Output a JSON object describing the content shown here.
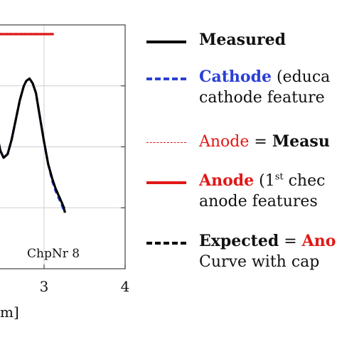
{
  "chart_data": {
    "type": "line",
    "x_ticks": [
      "3",
      "4"
    ],
    "xlabel_fragment": "m]",
    "xlim": [
      2.4,
      4.1
    ],
    "ylim": [
      0,
      1
    ],
    "annotation": "ChpNr 8",
    "series": [
      {
        "name": "Measured",
        "color": "#000000",
        "style": "solid",
        "points": [
          [
            2.39,
            0.65
          ],
          [
            2.42,
            0.55
          ],
          [
            2.46,
            0.485
          ],
          [
            2.5,
            0.455
          ],
          [
            2.55,
            0.47
          ],
          [
            2.6,
            0.53
          ],
          [
            2.65,
            0.61
          ],
          [
            2.7,
            0.69
          ],
          [
            2.75,
            0.75
          ],
          [
            2.78,
            0.77
          ],
          [
            2.82,
            0.78
          ],
          [
            2.86,
            0.76
          ],
          [
            2.9,
            0.72
          ],
          [
            2.93,
            0.66
          ],
          [
            2.96,
            0.6
          ],
          [
            3.0,
            0.52
          ],
          [
            3.05,
            0.43
          ],
          [
            3.1,
            0.37
          ],
          [
            3.14,
            0.33
          ],
          [
            3.18,
            0.3
          ],
          [
            3.22,
            0.27
          ],
          [
            3.26,
            0.23
          ]
        ]
      },
      {
        "name": "Cathode",
        "color": "#2a3fd6",
        "style": "dashed",
        "points": [
          [
            2.39,
            0.65
          ],
          [
            2.42,
            0.55
          ],
          [
            2.46,
            0.485
          ],
          [
            2.5,
            0.455
          ],
          [
            2.55,
            0.47
          ],
          [
            2.6,
            0.53
          ],
          [
            2.65,
            0.61
          ],
          [
            2.7,
            0.69
          ],
          [
            2.75,
            0.75
          ],
          [
            2.78,
            0.77
          ],
          [
            2.82,
            0.78
          ],
          [
            2.86,
            0.76
          ],
          [
            2.9,
            0.72
          ],
          [
            2.93,
            0.66
          ],
          [
            2.96,
            0.6
          ],
          [
            3.0,
            0.52
          ],
          [
            3.05,
            0.43
          ],
          [
            3.1,
            0.36
          ],
          [
            3.14,
            0.32
          ],
          [
            3.18,
            0.29
          ],
          [
            3.22,
            0.26
          ],
          [
            3.25,
            0.23
          ]
        ]
      },
      {
        "name": "Anode = Measured",
        "color": "#e01818",
        "style": "thin-dashed",
        "points": [
          [
            2.39,
            0.965
          ],
          [
            3.12,
            0.965
          ]
        ]
      },
      {
        "name": "Anode",
        "color": "#e01818",
        "style": "solid",
        "points": [
          [
            2.39,
            0.962
          ],
          [
            3.12,
            0.962
          ]
        ]
      },
      {
        "name": "Expected",
        "color": "#000000",
        "style": "dashed",
        "points": [
          [
            2.39,
            0.65
          ],
          [
            2.42,
            0.55
          ],
          [
            2.46,
            0.485
          ],
          [
            2.5,
            0.455
          ],
          [
            2.55,
            0.47
          ],
          [
            2.6,
            0.53
          ],
          [
            2.65,
            0.61
          ],
          [
            2.7,
            0.69
          ],
          [
            2.75,
            0.75
          ],
          [
            2.78,
            0.77
          ],
          [
            2.82,
            0.78
          ],
          [
            2.86,
            0.76
          ],
          [
            2.9,
            0.72
          ],
          [
            2.93,
            0.66
          ],
          [
            2.96,
            0.6
          ],
          [
            3.0,
            0.52
          ],
          [
            3.05,
            0.43
          ],
          [
            3.1,
            0.37
          ],
          [
            3.14,
            0.33
          ],
          [
            3.18,
            0.3
          ],
          [
            3.22,
            0.27
          ],
          [
            3.26,
            0.24
          ]
        ]
      }
    ]
  },
  "legend": {
    "measured": "Measured",
    "cathode": "Cathode",
    "cathode_rest": " (educa",
    "cathode_line2": "cathode feature",
    "anode_dashed": "Anode",
    "anode_dashed_eq": " = ",
    "anode_dashed_bold": "Measu",
    "anode": "Anode",
    "anode_rest": " (1",
    "anode_sup": "st",
    "anode_rest2": " chec",
    "anode_line2": "anode features",
    "expected": "Expected",
    "expected_eq": " = ",
    "expected_red": "Ano",
    "expected_line2": "Curve with cap"
  }
}
